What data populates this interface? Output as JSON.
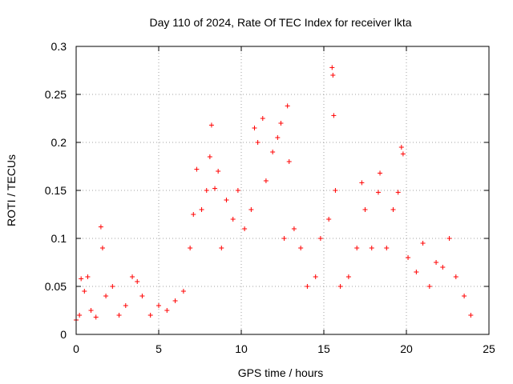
{
  "chart_data": {
    "type": "scatter",
    "title": "Day 110 of 2024, Rate Of TEC Index for receiver lkta",
    "xlabel": "GPS time / hours",
    "ylabel": "ROTI / TECUs",
    "xlim": [
      0,
      25
    ],
    "ylim": [
      0,
      0.3
    ],
    "xticks": [
      "0",
      "5",
      "10",
      "15",
      "20",
      "25"
    ],
    "yticks": [
      "0",
      "0.05",
      "0.1",
      "0.15",
      "0.2",
      "0.25",
      "0.3"
    ],
    "grid": true,
    "marker": "+",
    "series_color": "#ff0000",
    "series": [
      {
        "points": [
          [
            0.0,
            0.015
          ],
          [
            0.2,
            0.02
          ],
          [
            0.3,
            0.058
          ],
          [
            0.5,
            0.045
          ],
          [
            0.7,
            0.06
          ],
          [
            0.9,
            0.025
          ],
          [
            1.2,
            0.018
          ],
          [
            1.5,
            0.112
          ],
          [
            1.6,
            0.09
          ],
          [
            1.8,
            0.04
          ],
          [
            2.2,
            0.05
          ],
          [
            2.6,
            0.02
          ],
          [
            3.0,
            0.03
          ],
          [
            3.4,
            0.06
          ],
          [
            3.7,
            0.055
          ],
          [
            4.0,
            0.04
          ],
          [
            4.5,
            0.02
          ],
          [
            5.0,
            0.03
          ],
          [
            5.5,
            0.025
          ],
          [
            6.0,
            0.035
          ],
          [
            6.5,
            0.045
          ],
          [
            6.9,
            0.09
          ],
          [
            7.1,
            0.125
          ],
          [
            7.3,
            0.172
          ],
          [
            7.6,
            0.13
          ],
          [
            7.9,
            0.15
          ],
          [
            8.1,
            0.185
          ],
          [
            8.2,
            0.218
          ],
          [
            8.4,
            0.152
          ],
          [
            8.6,
            0.17
          ],
          [
            8.8,
            0.09
          ],
          [
            9.1,
            0.14
          ],
          [
            9.5,
            0.12
          ],
          [
            9.8,
            0.15
          ],
          [
            10.2,
            0.11
          ],
          [
            10.6,
            0.13
          ],
          [
            10.8,
            0.215
          ],
          [
            11.0,
            0.2
          ],
          [
            11.3,
            0.225
          ],
          [
            11.5,
            0.16
          ],
          [
            11.9,
            0.19
          ],
          [
            12.2,
            0.205
          ],
          [
            12.4,
            0.22
          ],
          [
            12.6,
            0.1
          ],
          [
            12.8,
            0.238
          ],
          [
            12.9,
            0.18
          ],
          [
            13.2,
            0.11
          ],
          [
            13.6,
            0.09
          ],
          [
            14.0,
            0.05
          ],
          [
            14.5,
            0.06
          ],
          [
            14.8,
            0.1
          ],
          [
            15.3,
            0.12
          ],
          [
            15.5,
            0.278
          ],
          [
            15.55,
            0.27
          ],
          [
            15.6,
            0.228
          ],
          [
            15.7,
            0.15
          ],
          [
            16.0,
            0.05
          ],
          [
            16.5,
            0.06
          ],
          [
            17.0,
            0.09
          ],
          [
            17.3,
            0.158
          ],
          [
            17.5,
            0.13
          ],
          [
            17.9,
            0.09
          ],
          [
            18.3,
            0.148
          ],
          [
            18.4,
            0.168
          ],
          [
            18.8,
            0.09
          ],
          [
            19.2,
            0.13
          ],
          [
            19.5,
            0.148
          ],
          [
            19.7,
            0.195
          ],
          [
            19.8,
            0.188
          ],
          [
            20.1,
            0.08
          ],
          [
            20.6,
            0.065
          ],
          [
            21.0,
            0.095
          ],
          [
            21.4,
            0.05
          ],
          [
            21.8,
            0.075
          ],
          [
            22.2,
            0.07
          ],
          [
            22.6,
            0.1
          ],
          [
            23.0,
            0.06
          ],
          [
            23.5,
            0.04
          ],
          [
            23.9,
            0.02
          ]
        ]
      }
    ]
  }
}
